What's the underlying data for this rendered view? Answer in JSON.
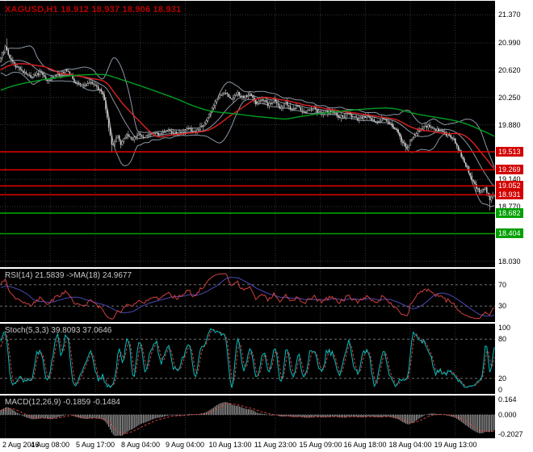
{
  "colors": {
    "panel_bg": "#000000",
    "page_bg": "#ffffff",
    "grid": "#383838",
    "title": "#b80000",
    "candle": "#b4b4b4",
    "candle_up_fill": "#000000",
    "candle_down_fill": "#c8c8c8",
    "bollinger": "#8a97a5",
    "ma_fast": "#e02020",
    "ma_slow": "#00a020",
    "level_red": "#d40000",
    "level_green": "#00a000",
    "rsi_line": "#d04040",
    "rsi_ma": "#4a4ab4",
    "stoch_main": "#00c0c0",
    "stoch_signal": "#d04040",
    "macd_hist": "#a8a8a8",
    "macd_signal": "#d04040",
    "indicator_label": "#c8c8c8",
    "panel_level": "#6e6e6e"
  },
  "main": {
    "title": "XAGUSD,H1 18.912 18.937 18.906 18.931",
    "price_range": [
      17.95,
      21.56
    ],
    "grid_prices": [
      21.37,
      20.99,
      20.62,
      20.25,
      19.88,
      19.51,
      19.14,
      18.77,
      18.4,
      18.03
    ],
    "axis_labels": [
      {
        "text": "21.370",
        "value": 21.37
      },
      {
        "text": "20.990",
        "value": 20.99
      },
      {
        "text": "20.620",
        "value": 20.62
      },
      {
        "text": "20.250",
        "value": 20.25
      },
      {
        "text": "19.880",
        "value": 19.88
      },
      {
        "text": "19.140",
        "value": 19.14
      },
      {
        "text": "18.770",
        "value": 18.77
      },
      {
        "text": "18.030",
        "value": 18.03
      }
    ],
    "levels": [
      {
        "text": "19.513",
        "value": 19.513,
        "color": "red"
      },
      {
        "text": "19.269",
        "value": 19.269,
        "color": "red"
      },
      {
        "text": "19.052",
        "value": 19.052,
        "color": "red"
      },
      {
        "text": "18.931",
        "value": 18.931,
        "color": "red"
      },
      {
        "text": "18.682",
        "value": 18.682,
        "color": "green"
      },
      {
        "text": "18.404",
        "value": 18.404,
        "color": "green"
      }
    ]
  },
  "rsi": {
    "label": "RSI(14) 21.5839 ->MA(18) 24.9677",
    "period": 14,
    "ma_period": 18,
    "current": 21.5839,
    "ma_current": 24.9677,
    "range": [
      0,
      100
    ],
    "levels": [
      70,
      30
    ],
    "axis_labels": [
      {
        "text": "70",
        "value": 70
      },
      {
        "text": "30",
        "value": 30
      }
    ]
  },
  "stoch": {
    "label": "Stoch(5,3,3) 39.8093 37.0646",
    "k": 5,
    "d": 3,
    "slowing": 3,
    "current_k": 39.8093,
    "current_d": 37.0646,
    "range": [
      -4,
      104
    ],
    "levels": [
      80,
      20
    ],
    "axis_labels": [
      {
        "text": "100",
        "value": 100
      },
      {
        "text": "80",
        "value": 80
      },
      {
        "text": "20",
        "value": 20
      },
      {
        "text": "0",
        "value": 0
      }
    ]
  },
  "macd": {
    "label": "MACD(12,26,9) -0.1859 -0.1484",
    "fast": 12,
    "slow": 26,
    "signal": 9,
    "current": -0.1859,
    "current_signal": -0.1484,
    "range": [
      -0.225,
      0.185
    ],
    "axis_labels": [
      {
        "text": "0.164",
        "value": 0.164
      },
      {
        "text": "0.000",
        "value": 0
      },
      {
        "text": "-0.2027",
        "value": -0.2027
      }
    ]
  },
  "x_axis": {
    "labels": [
      "2 Aug 2016",
      "4 Aug 08:00",
      "5 Aug 17:00",
      "8 Aug 04:00",
      "9 Aug 04:00",
      "10 Aug 13:00",
      "11 Aug 23:00",
      "15 Aug 09:00",
      "16 Aug 18:00",
      "18 Aug 04:00",
      "19 Aug 13:00"
    ],
    "first_label_bar": 3,
    "label_every_bars": 30
  },
  "chart_data": {
    "type": "candlestick",
    "symbol": "XAGUSD",
    "timeframe": "H1",
    "title": "XAGUSD,H1 18.912 18.937 18.906 18.931",
    "current_ohlc": {
      "open": 18.912,
      "high": 18.937,
      "low": 18.906,
      "close": 18.931
    },
    "ylim": [
      17.95,
      21.56
    ],
    "y_tick_labels": [
      "21.370",
      "20.990",
      "20.620",
      "20.250",
      "19.880",
      "19.513",
      "19.269",
      "19.140",
      "19.052",
      "18.931",
      "18.770",
      "18.682",
      "18.404",
      "18.030"
    ],
    "x_tick_labels": [
      "2 Aug 2016",
      "4 Aug 08:00",
      "5 Aug 17:00",
      "8 Aug 04:00",
      "9 Aug 04:00",
      "10 Aug 13:00",
      "11 Aug 23:00",
      "15 Aug 09:00",
      "16 Aug 18:00",
      "18 Aug 04:00",
      "19 Aug 13:00"
    ],
    "bars_total": 330,
    "close_path": [
      [
        0,
        20.8
      ],
      [
        3,
        20.92
      ],
      [
        8,
        20.72
      ],
      [
        14,
        20.6
      ],
      [
        20,
        20.52
      ],
      [
        26,
        20.58
      ],
      [
        32,
        20.48
      ],
      [
        38,
        20.56
      ],
      [
        44,
        20.62
      ],
      [
        50,
        20.45
      ],
      [
        56,
        20.4
      ],
      [
        60,
        20.46
      ],
      [
        64,
        20.38
      ],
      [
        68,
        20.3
      ],
      [
        70,
        20.1
      ],
      [
        72,
        19.85
      ],
      [
        74,
        19.6
      ],
      [
        76,
        19.66
      ],
      [
        78,
        19.72
      ],
      [
        80,
        19.62
      ],
      [
        84,
        19.73
      ],
      [
        88,
        19.68
      ],
      [
        92,
        19.76
      ],
      [
        96,
        19.71
      ],
      [
        100,
        19.78
      ],
      [
        106,
        19.74
      ],
      [
        112,
        19.8
      ],
      [
        118,
        19.76
      ],
      [
        124,
        19.82
      ],
      [
        130,
        19.78
      ],
      [
        134,
        19.86
      ],
      [
        138,
        19.96
      ],
      [
        142,
        20.16
      ],
      [
        146,
        20.28
      ],
      [
        150,
        20.33
      ],
      [
        154,
        20.22
      ],
      [
        158,
        20.3
      ],
      [
        162,
        20.24
      ],
      [
        166,
        20.29
      ],
      [
        170,
        20.18
      ],
      [
        174,
        20.23
      ],
      [
        178,
        20.15
      ],
      [
        182,
        20.21
      ],
      [
        186,
        20.12
      ],
      [
        190,
        20.17
      ],
      [
        194,
        20.08
      ],
      [
        198,
        20.13
      ],
      [
        202,
        20.05
      ],
      [
        208,
        20.11
      ],
      [
        214,
        20.02
      ],
      [
        220,
        20.07
      ],
      [
        226,
        19.98
      ],
      [
        232,
        20.03
      ],
      [
        238,
        19.95
      ],
      [
        244,
        20.0
      ],
      [
        250,
        19.92
      ],
      [
        256,
        19.97
      ],
      [
        260,
        19.88
      ],
      [
        264,
        19.8
      ],
      [
        268,
        19.62
      ],
      [
        271,
        19.58
      ],
      [
        274,
        19.7
      ],
      [
        278,
        19.79
      ],
      [
        282,
        19.85
      ],
      [
        286,
        19.87
      ],
      [
        290,
        19.82
      ],
      [
        294,
        19.78
      ],
      [
        298,
        19.74
      ],
      [
        302,
        19.68
      ],
      [
        305,
        19.55
      ],
      [
        308,
        19.42
      ],
      [
        311,
        19.3
      ],
      [
        314,
        19.14
      ],
      [
        317,
        19.02
      ],
      [
        320,
        18.96
      ],
      [
        323,
        19.03
      ],
      [
        326,
        18.88
      ],
      [
        328,
        18.96
      ],
      [
        329,
        18.931
      ]
    ],
    "pre_path": [
      [
        0,
        19.95
      ],
      [
        60,
        20.35
      ],
      [
        119,
        20.72
      ]
    ],
    "extreme_wicks": [
      {
        "bar": 4,
        "high": 21.05
      },
      {
        "bar": 74,
        "low": 19.5
      },
      {
        "bar": 270,
        "low": 19.52
      },
      {
        "bar": 326,
        "low": 18.72
      }
    ],
    "indicators": {
      "bollinger": {
        "period": 20,
        "deviation": 2
      },
      "ma_fast": {
        "period": 34,
        "color_desc": "red"
      },
      "ma_slow": {
        "period": 120,
        "color_desc": "green"
      },
      "rsi": {
        "period": 14,
        "ma": 18,
        "current": 21.5839,
        "ma_current": 24.9677
      },
      "stochastic": {
        "params": [
          5,
          3,
          3
        ],
        "current_k": 39.8093,
        "current_d": 37.0646
      },
      "macd": {
        "params": [
          12,
          26,
          9
        ],
        "current": -0.1859,
        "current_signal": -0.1484
      },
      "horizontal_levels_red": [
        19.513,
        19.269,
        19.052,
        18.931
      ],
      "horizontal_levels_green": [
        18.682,
        18.404
      ]
    }
  }
}
